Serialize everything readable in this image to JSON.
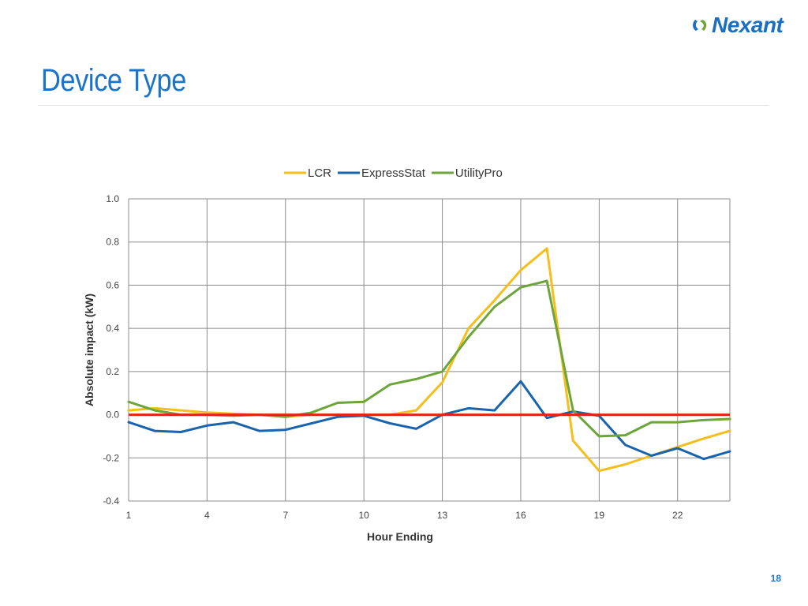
{
  "slide": {
    "title": "Device Type",
    "page_number": "18",
    "logo_text": "Nexant"
  },
  "chart_data": {
    "type": "line",
    "title": "",
    "xlabel": "Hour Ending",
    "ylabel": "Absolute impact (kW)",
    "x": [
      1,
      2,
      3,
      4,
      5,
      6,
      7,
      8,
      9,
      10,
      11,
      12,
      13,
      14,
      15,
      16,
      17,
      18,
      19,
      20,
      21,
      22,
      23,
      24
    ],
    "xlim": [
      1,
      24
    ],
    "ylim": [
      -0.4,
      1.0
    ],
    "x_ticks": [
      1,
      4,
      7,
      10,
      13,
      16,
      19,
      22
    ],
    "x_tick_labels": [
      "1",
      "4",
      "7",
      "10",
      "13",
      "16",
      "19",
      "22"
    ],
    "y_ticks": [
      -0.4,
      -0.2,
      0.0,
      0.2,
      0.4,
      0.6,
      0.8,
      1.0
    ],
    "y_tick_labels": [
      "-0.4",
      "-0.2",
      "0.0",
      "0.2",
      "0.4",
      "0.6",
      "0.8",
      "1.0"
    ],
    "grid": true,
    "legend_position": "top",
    "series": [
      {
        "name": "LCR",
        "color": "#f6be1a",
        "values": [
          0.02,
          0.03,
          0.02,
          0.01,
          0.005,
          0.0,
          -0.01,
          0.0,
          0.0,
          0.0,
          0.0,
          0.02,
          0.15,
          0.4,
          0.53,
          0.67,
          0.77,
          -0.12,
          -0.26,
          -0.23,
          -0.19,
          -0.15,
          -0.11,
          -0.075
        ]
      },
      {
        "name": "ExpressStat",
        "color": "#1a64ad",
        "values": [
          -0.035,
          -0.075,
          -0.08,
          -0.05,
          -0.035,
          -0.075,
          -0.07,
          -0.04,
          -0.01,
          -0.005,
          -0.04,
          -0.065,
          0.0,
          0.03,
          0.02,
          0.155,
          -0.015,
          0.015,
          -0.005,
          -0.14,
          -0.19,
          -0.155,
          -0.205,
          -0.17
        ]
      },
      {
        "name": "UtilityPro",
        "color": "#6da53b",
        "values": [
          0.06,
          0.02,
          0.0,
          0.0,
          -0.005,
          0.0,
          -0.01,
          0.01,
          0.055,
          0.06,
          0.14,
          0.165,
          0.2,
          0.36,
          0.5,
          0.59,
          0.62,
          0.02,
          -0.1,
          -0.095,
          -0.035,
          -0.035,
          -0.025,
          -0.02
        ]
      }
    ],
    "reference_line": {
      "y": 0.0,
      "color": "#e8201a"
    }
  }
}
